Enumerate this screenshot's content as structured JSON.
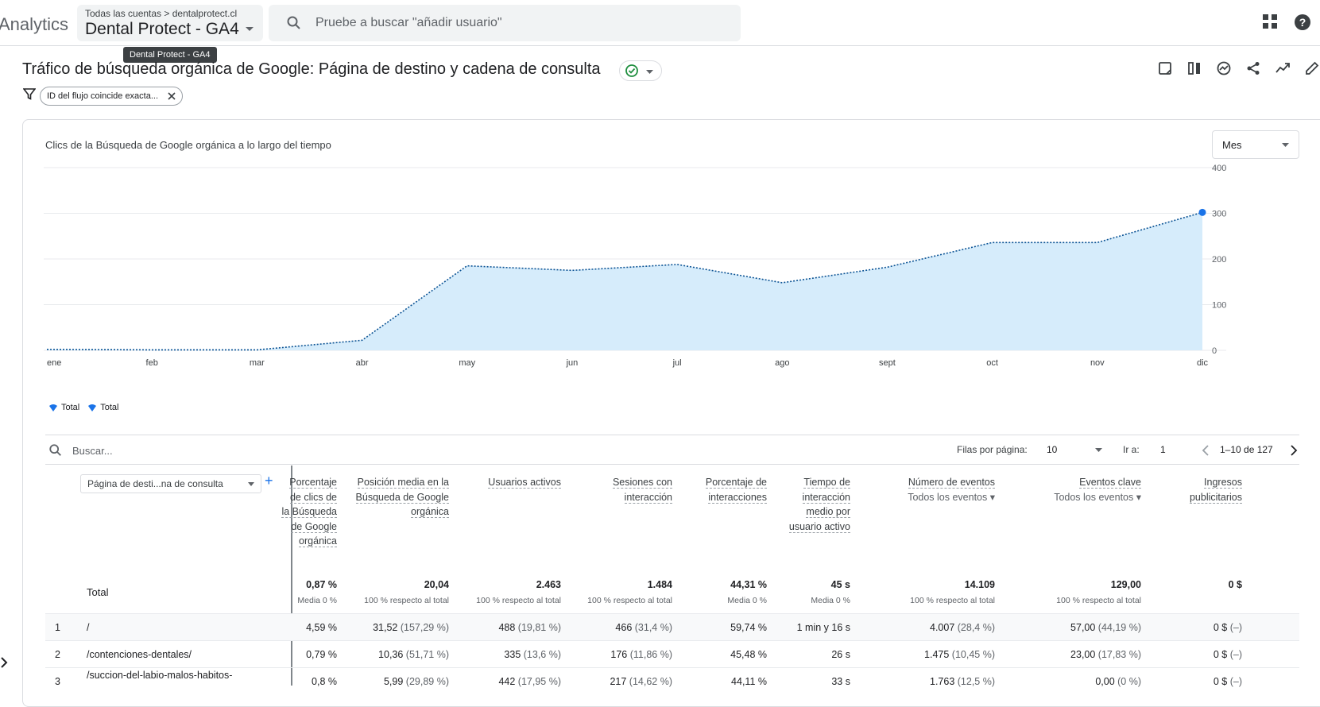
{
  "header": {
    "app_name": "Analytics",
    "breadcrumb": "Todas las cuentas > dentalprotect.cl",
    "property": "Dental Protect - GA4",
    "search_placeholder": "Pruebe a buscar \"añadir usuario\"",
    "tooltip": "Dental Protect - GA4"
  },
  "report": {
    "title": "Tráfico de búsqueda orgánica de Google: Página de destino y cadena de consulta",
    "filter": "ID del flujo coincide exacta..."
  },
  "chart": {
    "title": "Clics de la Búsqueda de Google orgánica a lo largo del tiempo",
    "period": "Mes",
    "legend": [
      "Total",
      "Total"
    ]
  },
  "chart_data": {
    "type": "area",
    "title": "Clics de la Búsqueda de Google orgánica a lo largo del tiempo",
    "x": [
      "ene",
      "feb",
      "mar",
      "abr",
      "may",
      "jun",
      "jul",
      "ago",
      "sept",
      "oct",
      "nov",
      "dic"
    ],
    "series": [
      {
        "name": "Total",
        "values": [
          2,
          1,
          1,
          22,
          185,
          175,
          188,
          148,
          182,
          236,
          236,
          302
        ]
      }
    ],
    "yticks": [
      0,
      100,
      200,
      300,
      400
    ],
    "ylim": [
      0,
      400
    ],
    "grid": true,
    "legend": "bottom-left"
  },
  "table": {
    "search_placeholder": "Buscar...",
    "rows_per_page_label": "Filas por página:",
    "rows_per_page": "10",
    "goto_label": "Ir a:",
    "goto_value": "1",
    "page_info": "1–10 de 127",
    "dimension": "Página de desti...na de consulta",
    "total_label": "Total",
    "columns": [
      {
        "label": "Porcentaje de clics de la Búsqueda de Google orgánica",
        "sub": "",
        "total": "0,87 %",
        "total_sub": "Media 0 %"
      },
      {
        "label": "Posición media en la Búsqueda de Google orgánica",
        "sub": "",
        "total": "20,04",
        "total_sub": "100 % respecto al total"
      },
      {
        "label": "Usuarios activos",
        "sub": "",
        "total": "2.463",
        "total_sub": "100 % respecto al total"
      },
      {
        "label": "Sesiones con interacción",
        "sub": "",
        "total": "1.484",
        "total_sub": "100 % respecto al total"
      },
      {
        "label": "Porcentaje de interacciones",
        "sub": "",
        "total": "44,31 %",
        "total_sub": "Media 0 %"
      },
      {
        "label": "Tiempo de interacción medio por usuario activo",
        "sub": "",
        "total": "45 s",
        "total_sub": "Media 0 %"
      },
      {
        "label": "Número de eventos",
        "sub": "Todos los eventos",
        "total": "14.109",
        "total_sub": "100 % respecto al total"
      },
      {
        "label": "Eventos clave",
        "sub": "Todos los eventos",
        "total": "129,00",
        "total_sub": "100 % respecto al total"
      },
      {
        "label": "Ingresos publicitarios",
        "sub": "",
        "total": "0 $",
        "total_sub": ""
      }
    ],
    "rows": [
      {
        "num": "1",
        "page": "/",
        "cells": [
          [
            "4,59 %",
            ""
          ],
          [
            "31,52",
            "(157,29 %)"
          ],
          [
            "488",
            "(19,81 %)"
          ],
          [
            "466",
            "(31,4 %)"
          ],
          [
            "59,74 %",
            ""
          ],
          [
            "1 min y 16 s",
            ""
          ],
          [
            "4.007",
            "(28,4 %)"
          ],
          [
            "57,00",
            "(44,19 %)"
          ],
          [
            "0 $",
            "(–)"
          ]
        ]
      },
      {
        "num": "2",
        "page": "/contenciones-dentales/",
        "cells": [
          [
            "0,79 %",
            ""
          ],
          [
            "10,36",
            "(51,71 %)"
          ],
          [
            "335",
            "(13,6 %)"
          ],
          [
            "176",
            "(11,86 %)"
          ],
          [
            "45,48 %",
            ""
          ],
          [
            "26 s",
            ""
          ],
          [
            "1.475",
            "(10,45 %)"
          ],
          [
            "23,00",
            "(17,83 %)"
          ],
          [
            "0 $",
            "(–)"
          ]
        ]
      },
      {
        "num": "3",
        "page": "/succion-del-labio-malos-habitos-",
        "cells": [
          [
            "0,8 %",
            ""
          ],
          [
            "5,99",
            "(29,89 %)"
          ],
          [
            "442",
            "(17,95 %)"
          ],
          [
            "217",
            "(14,62 %)"
          ],
          [
            "44,11 %",
            ""
          ],
          [
            "33 s",
            ""
          ],
          [
            "1.763",
            "(12,5 %)"
          ],
          [
            "0,00",
            "(0 %)"
          ],
          [
            "0 $",
            "(–)"
          ]
        ]
      }
    ]
  }
}
